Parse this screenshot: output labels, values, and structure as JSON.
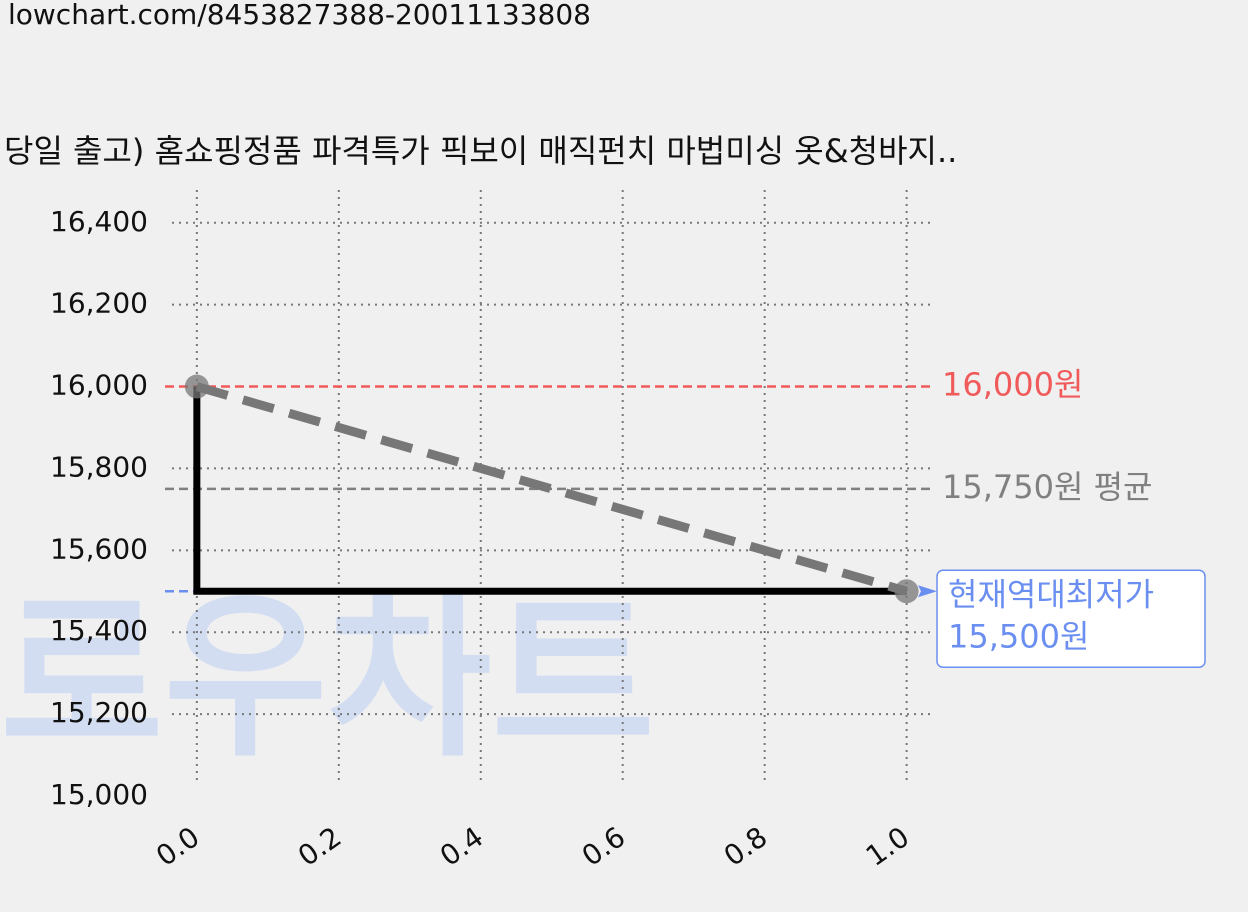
{
  "url": "lowchart.com/8453827388-20011133808",
  "chart_data": {
    "type": "line",
    "title": "당일 출고) 홈쇼핑정품 파격특가 픽보이 매직펀치 마법미싱 옷&청바지..",
    "watermark": "로우차트",
    "series": [
      {
        "color": "#000000",
        "x": [
          0,
          0,
          1
        ],
        "values": [
          16000,
          15500,
          15500
        ]
      },
      {
        "color": "#777777",
        "dashed": true,
        "markers": true,
        "x": [
          0,
          1
        ],
        "values": [
          16000,
          15500
        ]
      }
    ],
    "reference_lines": [
      {
        "value": 16000,
        "label": "16,000원",
        "color": "#f05a5a"
      },
      {
        "value": 15750,
        "label": "15,750원 평균",
        "color": "#808080"
      },
      {
        "value": 15500,
        "title": "현재역대최저가",
        "label": "15,500원",
        "color": "#6b8ff0",
        "boxed": true
      }
    ],
    "xlim": [
      -0.035,
      1.04
    ],
    "ylim": [
      15000,
      16480
    ],
    "xticks": [
      {
        "value": 0,
        "label": "0.0"
      },
      0.2,
      0.4,
      0.6,
      0.8,
      {
        "value": 1,
        "label": "1.0"
      }
    ],
    "yticks": [
      {
        "value": 15000,
        "label": "15,000"
      },
      {
        "value": 15200,
        "label": "15,200"
      },
      {
        "value": 15400,
        "label": "15,400"
      },
      {
        "value": 15600,
        "label": "15,600"
      },
      {
        "value": 15800,
        "label": "15,800"
      },
      {
        "value": 16000,
        "label": "16,000"
      },
      {
        "value": 16200,
        "label": "16,200"
      },
      {
        "value": 16400,
        "label": "16,400"
      }
    ],
    "grid": true
  }
}
